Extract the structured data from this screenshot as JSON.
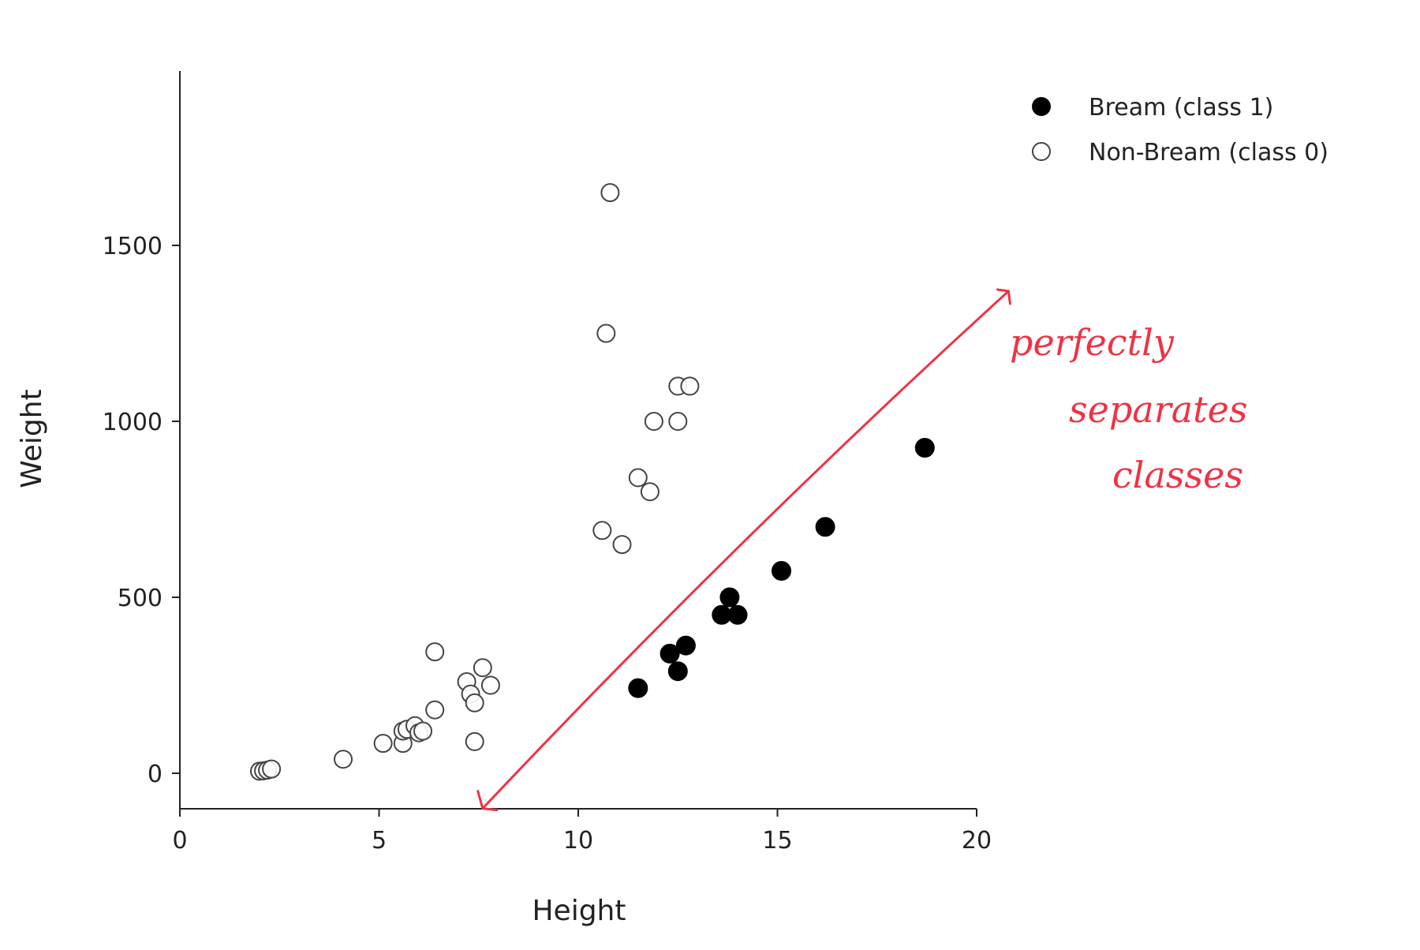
{
  "chart_data": {
    "type": "scatter",
    "xlabel": "Height",
    "ylabel": "Weight",
    "xlim": [
      0,
      20
    ],
    "ylim": [
      -100,
      2000
    ],
    "x_ticks": [
      0,
      5,
      10,
      15,
      20
    ],
    "x_tick_labels": [
      "0",
      "5",
      "10",
      "15",
      "20"
    ],
    "y_ticks": [
      0,
      500,
      1000,
      1500
    ],
    "y_tick_labels": [
      "0",
      "500",
      "1000",
      "1500"
    ],
    "grid": false,
    "legend_position": "top-right",
    "series": [
      {
        "name": "Bream (class 1)",
        "marker": "filled-circle",
        "color": "#000000",
        "points": [
          {
            "x": 11.5,
            "y": 242
          },
          {
            "x": 12.3,
            "y": 340
          },
          {
            "x": 12.5,
            "y": 290
          },
          {
            "x": 12.7,
            "y": 363
          },
          {
            "x": 13.6,
            "y": 450
          },
          {
            "x": 13.8,
            "y": 500
          },
          {
            "x": 14.0,
            "y": 450
          },
          {
            "x": 15.1,
            "y": 575
          },
          {
            "x": 16.2,
            "y": 700
          },
          {
            "x": 18.7,
            "y": 925
          }
        ]
      },
      {
        "name": "Non-Bream (class 0)",
        "marker": "open-circle",
        "color": "#444444",
        "points": [
          {
            "x": 2.0,
            "y": 5.9
          },
          {
            "x": 2.1,
            "y": 7
          },
          {
            "x": 2.2,
            "y": 9
          },
          {
            "x": 2.3,
            "y": 12
          },
          {
            "x": 4.1,
            "y": 40
          },
          {
            "x": 5.1,
            "y": 85
          },
          {
            "x": 5.6,
            "y": 85
          },
          {
            "x": 5.6,
            "y": 120
          },
          {
            "x": 5.7,
            "y": 125
          },
          {
            "x": 5.9,
            "y": 135
          },
          {
            "x": 6.0,
            "y": 115
          },
          {
            "x": 6.1,
            "y": 120
          },
          {
            "x": 6.4,
            "y": 345
          },
          {
            "x": 6.4,
            "y": 180
          },
          {
            "x": 7.2,
            "y": 260
          },
          {
            "x": 7.3,
            "y": 225
          },
          {
            "x": 7.4,
            "y": 200
          },
          {
            "x": 7.4,
            "y": 90
          },
          {
            "x": 7.6,
            "y": 300
          },
          {
            "x": 7.8,
            "y": 250
          },
          {
            "x": 10.6,
            "y": 690
          },
          {
            "x": 11.1,
            "y": 650
          },
          {
            "x": 11.5,
            "y": 840
          },
          {
            "x": 11.8,
            "y": 800
          },
          {
            "x": 11.9,
            "y": 1000
          },
          {
            "x": 12.5,
            "y": 1000
          },
          {
            "x": 12.5,
            "y": 1100
          },
          {
            "x": 12.8,
            "y": 1100
          },
          {
            "x": 10.7,
            "y": 1250
          },
          {
            "x": 10.8,
            "y": 1650
          }
        ]
      }
    ],
    "annotation": {
      "text_lines": [
        "perfectly",
        "separates",
        "classes"
      ],
      "color": "#ee3344",
      "arrow_from": {
        "x": 7.6,
        "y": -100
      },
      "arrow_to": {
        "x": 20.8,
        "y": 1370
      }
    }
  }
}
